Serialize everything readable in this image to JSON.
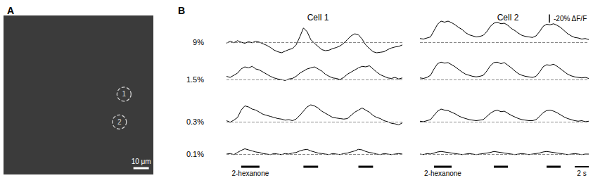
{
  "chart_data": [
    {
      "type": "scatter",
      "title": "A",
      "xlim": [
        0,
        97
      ],
      "ylim": [
        0,
        103
      ],
      "tick_labels": false,
      "grid": false,
      "marker": "dashed circle",
      "color": "#ffffff",
      "points": [
        {
          "label": "1",
          "x": 78,
          "y": 52
        },
        {
          "label": "2",
          "x": 75,
          "y": 34
        }
      ],
      "scale_bar": {
        "value": 10,
        "label": "10 μm"
      }
    },
    {
      "type": "line",
      "title": "B",
      "tick_labels": false,
      "grid": false,
      "color": "#000000",
      "x": [
        0,
        0.5,
        1,
        1.5,
        2,
        2.5,
        3,
        3.5,
        4,
        4.5,
        5,
        5.5,
        6,
        6.5,
        7,
        7.5,
        8,
        8.5,
        9,
        9.5,
        10,
        10.5,
        11,
        11.5,
        12,
        12.5,
        13,
        13.5,
        14,
        14.5,
        15,
        15.5,
        16,
        16.5,
        17,
        17.5,
        18,
        18.5,
        19,
        19.5,
        20,
        20.5,
        21,
        21.5,
        22,
        22.5,
        23,
        23.5,
        24
      ],
      "xlim": [
        0,
        24
      ],
      "ylim": [
        25,
        -55
      ],
      "baseline": 0,
      "rows": [
        "9%",
        "1.5%",
        "0.3%",
        "0.1%"
      ],
      "panels": [
        {
          "title": "Cell 1",
          "values": [
            [
              2,
              -2,
              1,
              -3,
              0,
              2,
              -1,
              1,
              -2,
              0,
              3,
              6,
              10,
              15,
              18,
              20,
              17,
              14,
              12,
              5,
              -10,
              -27,
              -20,
              -5,
              2,
              8,
              14,
              16,
              15,
              12,
              10,
              7,
              2,
              -5,
              -12,
              -16,
              -14,
              -6,
              5,
              12,
              18,
              20,
              19,
              18,
              14,
              11,
              9,
              8,
              5
            ],
            [
              -6,
              -4,
              -8,
              -12,
              -20,
              -24,
              -22,
              -25,
              -20,
              -18,
              -14,
              -10,
              -6,
              -3,
              -1,
              0,
              2,
              -1,
              -2,
              -6,
              -12,
              -16,
              -20,
              -22,
              -24,
              -20,
              -16,
              -10,
              -6,
              -3,
              -2,
              0,
              -4,
              -10,
              -14,
              -18,
              -22,
              -25,
              -24,
              -26,
              -20,
              -14,
              -9,
              -6,
              -3,
              -2,
              -4,
              -1,
              -3
            ],
            [
              -2,
              1,
              -3,
              -8,
              -22,
              -30,
              -28,
              -24,
              -22,
              -18,
              -14,
              -12,
              -10,
              -8,
              -6,
              -5,
              -3,
              -4,
              -2,
              -5,
              -12,
              -20,
              -28,
              -32,
              -30,
              -26,
              -20,
              -16,
              -12,
              -8,
              -7,
              -6,
              -5,
              -6,
              -12,
              -18,
              -22,
              -26,
              -22,
              -18,
              -12,
              -8,
              -6,
              -2,
              0,
              3,
              4,
              6,
              2
            ],
            [
              0,
              -1,
              1,
              -3,
              -7,
              -10,
              -8,
              -6,
              -4,
              -3,
              -1,
              0,
              1,
              -1,
              0,
              1,
              -1,
              0,
              -2,
              -3,
              -6,
              -8,
              -9,
              -6,
              -4,
              -2,
              -1,
              0,
              1,
              -1,
              0,
              1,
              -1,
              -2,
              -4,
              -6,
              -9,
              -8,
              -5,
              -3,
              -2,
              0,
              1,
              -1,
              0,
              1,
              0,
              -1,
              0
            ]
          ]
        },
        {
          "title": "Cell 2",
          "values": [
            [
              -7,
              -6,
              -8,
              -10,
              -22,
              -34,
              -40,
              -38,
              -40,
              -37,
              -33,
              -28,
              -24,
              -18,
              -14,
              -12,
              -10,
              -11,
              -13,
              -20,
              -30,
              -36,
              -38,
              -35,
              -36,
              -32,
              -26,
              -22,
              -17,
              -13,
              -11,
              -10,
              -9,
              -12,
              -20,
              -30,
              -34,
              -33,
              -35,
              -32,
              -28,
              -22,
              -16,
              -12,
              -9,
              -8,
              -6,
              -7,
              -5
            ],
            [
              -3,
              -2,
              -4,
              -8,
              -20,
              -30,
              -33,
              -31,
              -32,
              -28,
              -24,
              -19,
              -14,
              -10,
              -8,
              -6,
              -5,
              -6,
              -8,
              -16,
              -26,
              -32,
              -33,
              -30,
              -32,
              -27,
              -22,
              -16,
              -11,
              -8,
              -6,
              -5,
              -4,
              -6,
              -14,
              -24,
              -28,
              -27,
              -29,
              -25,
              -20,
              -15,
              -10,
              -7,
              -5,
              -4,
              -3,
              -4,
              -2
            ],
            [
              -1,
              0,
              -2,
              -4,
              -12,
              -20,
              -24,
              -22,
              -21,
              -18,
              -15,
              -11,
              -8,
              -6,
              -4,
              -3,
              -2,
              -3,
              -4,
              -10,
              -16,
              -20,
              -22,
              -19,
              -20,
              -16,
              -12,
              -9,
              -6,
              -4,
              -3,
              -2,
              -2,
              -4,
              -10,
              -17,
              -21,
              -22,
              -20,
              -17,
              -13,
              -9,
              -6,
              -4,
              -2,
              -1,
              -2,
              0,
              -1
            ],
            [
              0,
              1,
              -1,
              0,
              -2,
              -4,
              -5,
              -4,
              -3,
              -2,
              -1,
              0,
              1,
              0,
              -1,
              0,
              1,
              0,
              -1,
              -2,
              -3,
              -5,
              -4,
              -3,
              -2,
              -1,
              0,
              1,
              0,
              -1,
              0,
              1,
              0,
              -1,
              -2,
              -4,
              -5,
              -4,
              -3,
              -2,
              -1,
              0,
              1,
              0,
              -1,
              0,
              1,
              0,
              0
            ]
          ]
        }
      ],
      "stimulus": {
        "label": "2-hexanone",
        "intervals": [
          [
            2,
            4.5
          ],
          [
            10.5,
            12.5
          ],
          [
            18,
            20
          ]
        ]
      },
      "scale_bars": [
        {
          "axis": "y",
          "value": -20,
          "label": "-20% ΔF/F"
        },
        {
          "axis": "x",
          "value": 2,
          "label": "2 s"
        }
      ]
    }
  ]
}
